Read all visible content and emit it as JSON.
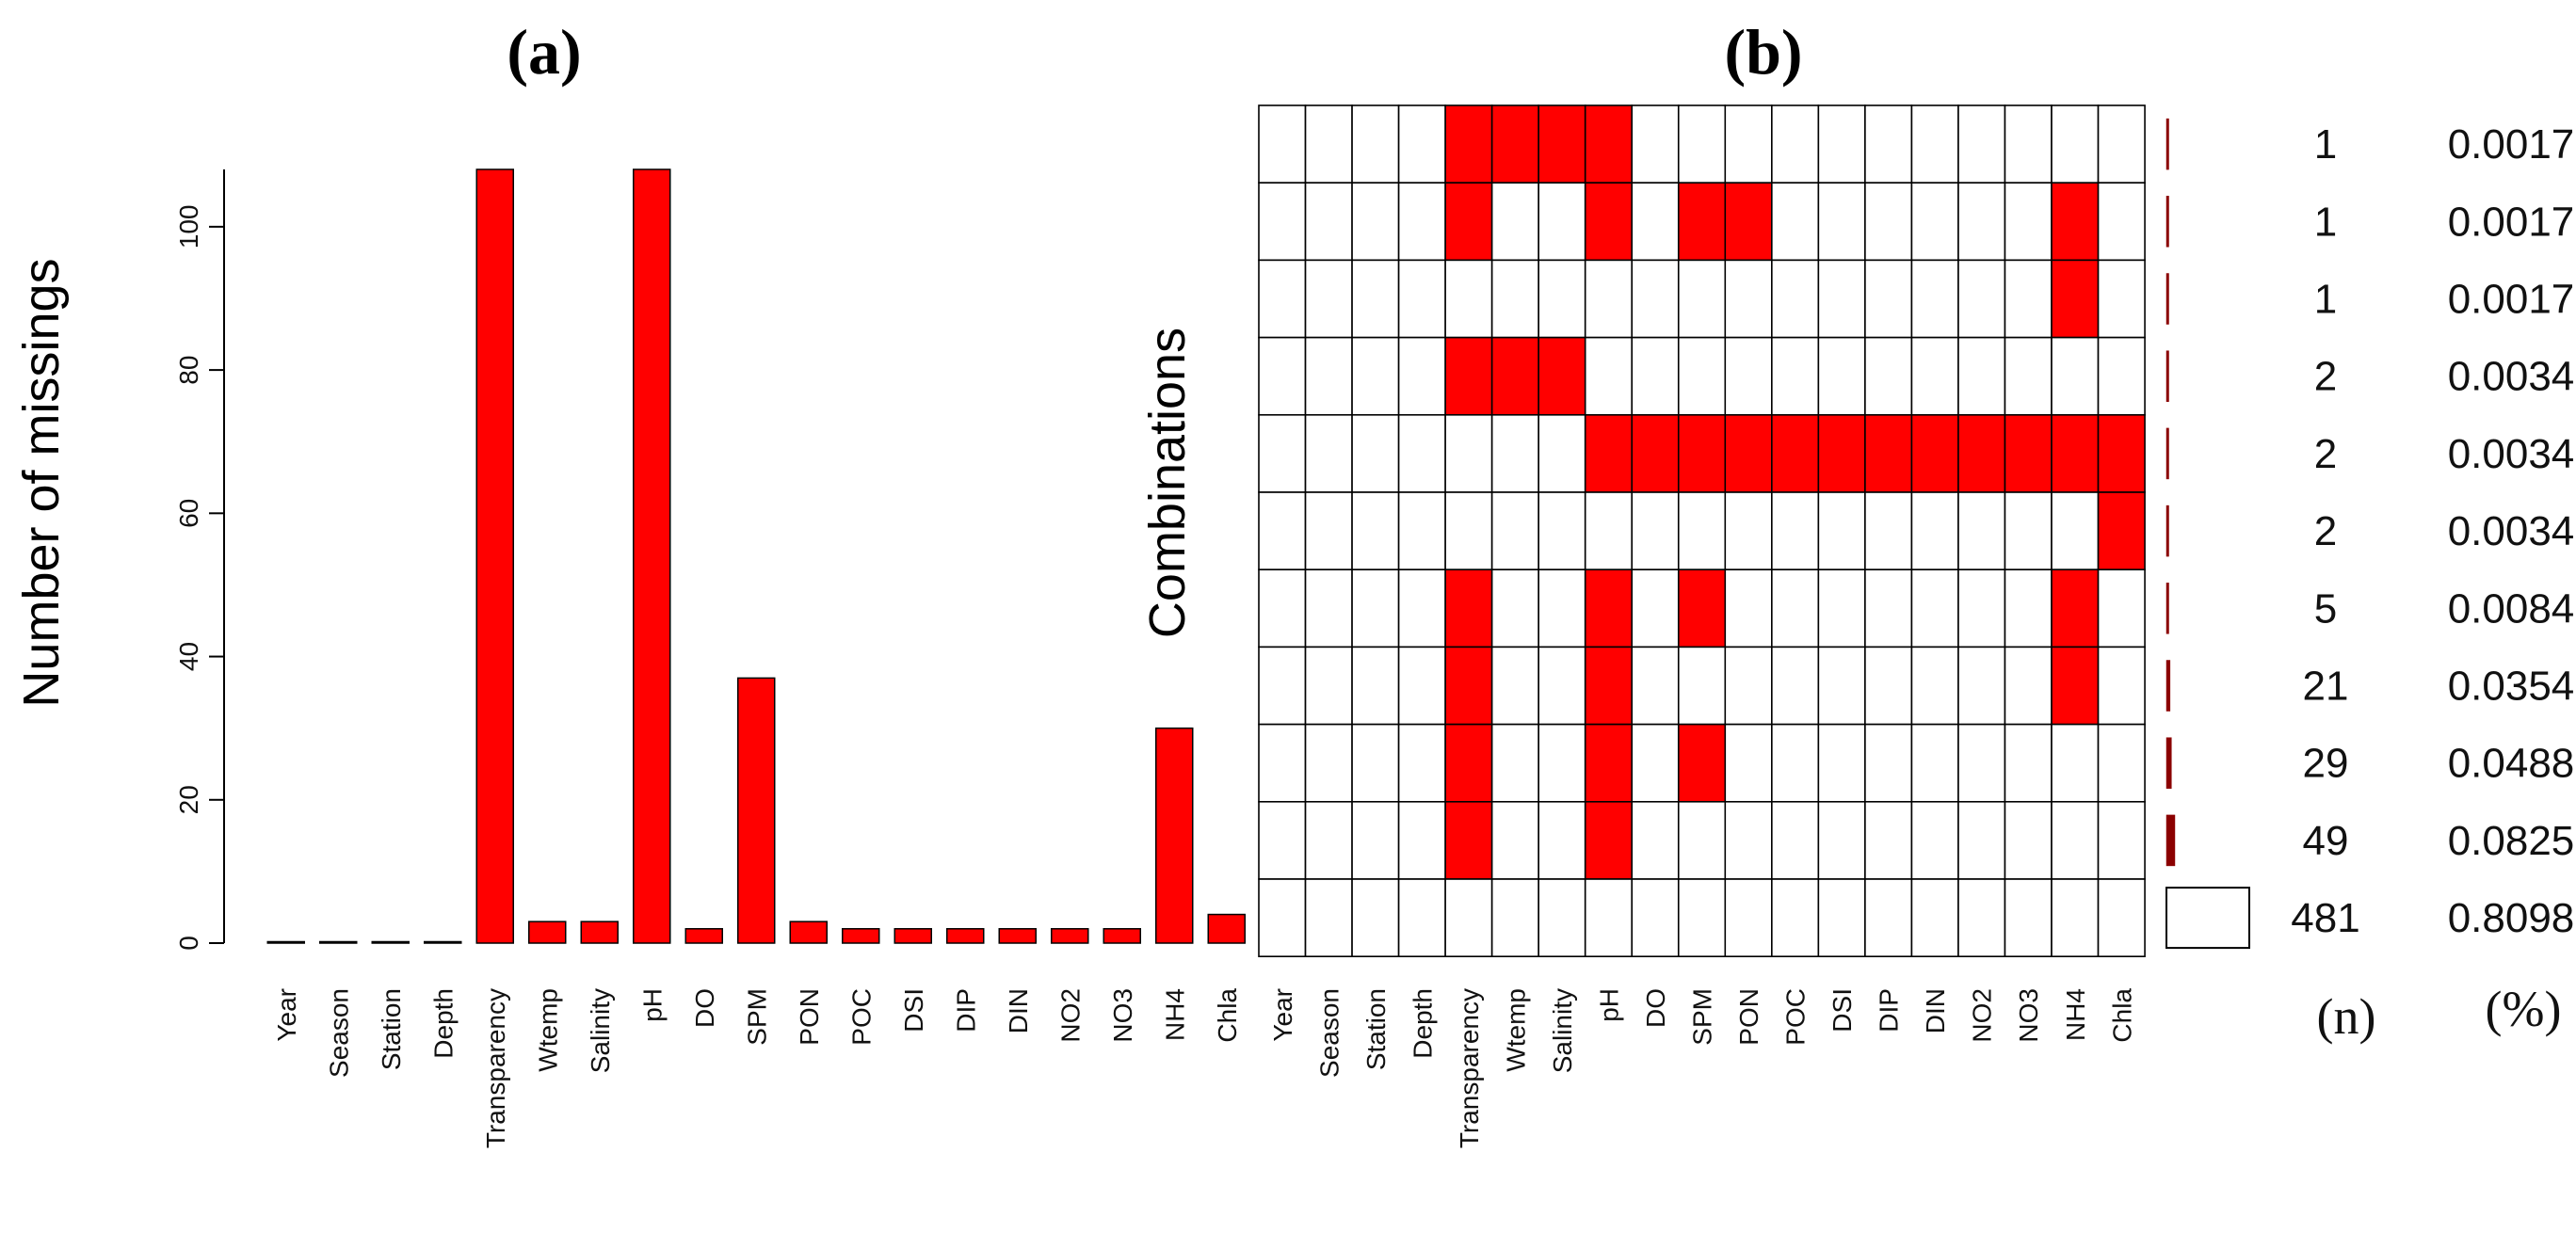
{
  "colors": {
    "bar": "#ff0000",
    "missing_cell": "#ff0000",
    "present_cell": "#ffffff",
    "edge": "#000000",
    "count_bar": "#8b0000"
  },
  "panel_a": {
    "title": "(a)"
  },
  "panel_b": {
    "title": "(b)",
    "ylabel": "Combinations",
    "count_header": "(n)",
    "pct_header": "(%)"
  },
  "chart_data": [
    {
      "type": "bar",
      "title": "(a)",
      "xlabel": "",
      "ylabel": "Number of missings",
      "categories": [
        "Year",
        "Season",
        "Station",
        "Depth",
        "Transparency",
        "Wtemp",
        "Salinity",
        "pH",
        "DO",
        "SPM",
        "PON",
        "POC",
        "DSI",
        "DIP",
        "DIN",
        "NO2",
        "NO3",
        "NH4",
        "Chla"
      ],
      "values": [
        0,
        0,
        0,
        0,
        108,
        3,
        3,
        108,
        2,
        37,
        3,
        2,
        2,
        2,
        2,
        2,
        2,
        30,
        4
      ],
      "ylim": [
        0,
        108
      ],
      "yticks": [
        0,
        20,
        40,
        60,
        80,
        100
      ],
      "grid": false
    },
    {
      "type": "heatmap",
      "title": "(b)",
      "ylabel": "Combinations",
      "variables": [
        "Year",
        "Season",
        "Station",
        "Depth",
        "Transparency",
        "Wtemp",
        "Salinity",
        "pH",
        "DO",
        "SPM",
        "PON",
        "POC",
        "DSI",
        "DIP",
        "DIN",
        "NO2",
        "NO3",
        "NH4",
        "Chla"
      ],
      "combinations": [
        {
          "missing": [
            "Transparency",
            "Wtemp",
            "Salinity",
            "pH"
          ],
          "count": "1",
          "percent": "0.0017"
        },
        {
          "missing": [
            "Transparency",
            "pH",
            "SPM",
            "PON",
            "NH4"
          ],
          "count": "1",
          "percent": "0.0017"
        },
        {
          "missing": [
            "NH4"
          ],
          "count": "1",
          "percent": "0.0017"
        },
        {
          "missing": [
            "Transparency",
            "Wtemp",
            "Salinity"
          ],
          "count": "2",
          "percent": "0.0034"
        },
        {
          "missing": [
            "pH",
            "DO",
            "SPM",
            "PON",
            "POC",
            "DSI",
            "DIP",
            "DIN",
            "NO2",
            "NO3",
            "NH4",
            "Chla"
          ],
          "count": "2",
          "percent": "0.0034"
        },
        {
          "missing": [
            "Chla"
          ],
          "count": "2",
          "percent": "0.0034"
        },
        {
          "missing": [
            "Transparency",
            "pH",
            "SPM",
            "NH4"
          ],
          "count": "5",
          "percent": "0.0084"
        },
        {
          "missing": [
            "Transparency",
            "pH",
            "NH4"
          ],
          "count": "21",
          "percent": "0.0354"
        },
        {
          "missing": [
            "Transparency",
            "pH",
            "SPM"
          ],
          "count": "29",
          "percent": "0.0488"
        },
        {
          "missing": [
            "Transparency",
            "pH"
          ],
          "count": "49",
          "percent": "0.0825"
        },
        {
          "missing": [],
          "count": "481",
          "percent": "0.8098"
        }
      ]
    }
  ]
}
